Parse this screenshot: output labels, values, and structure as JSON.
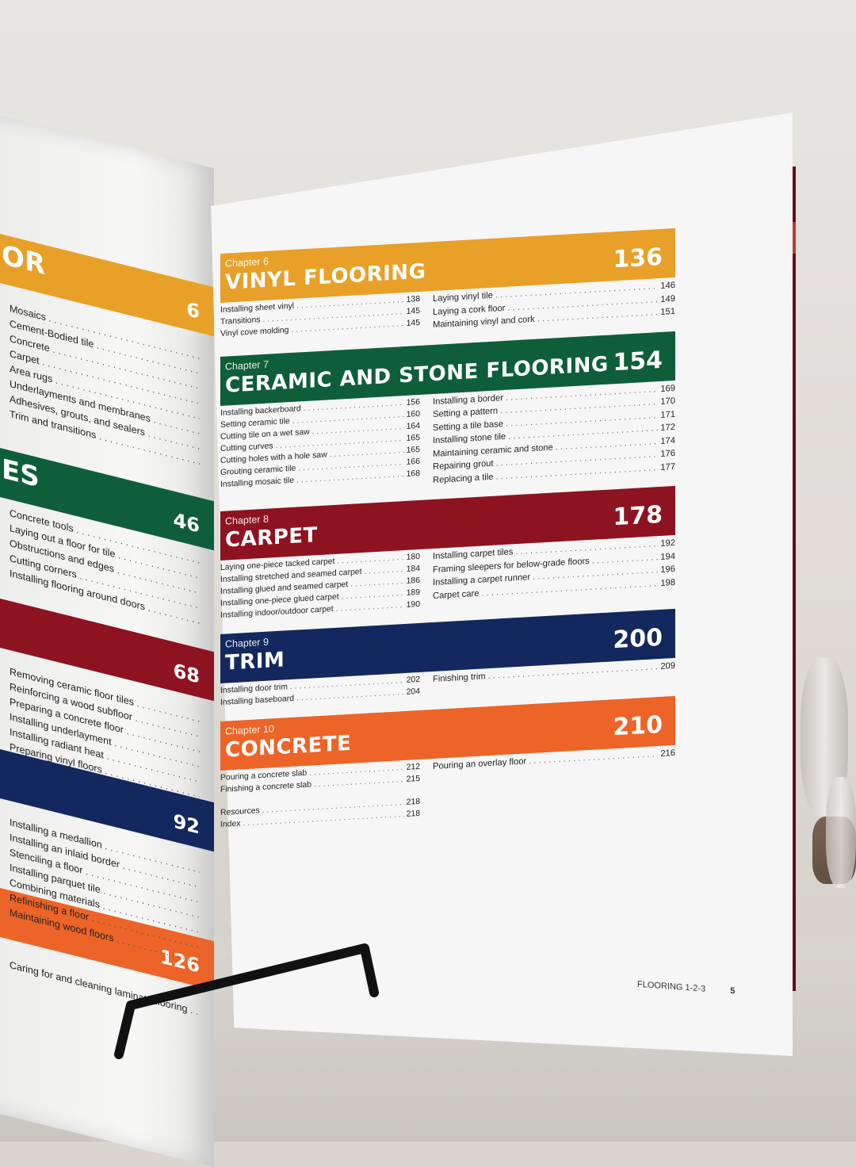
{
  "colors": {
    "orange_yellow": "#e8a029",
    "green": "#0f5e3a",
    "dark_red": "#8e1320",
    "navy": "#13285e",
    "orange": "#ec6427"
  },
  "left_page": {
    "bands": [
      {
        "fragment": "OR",
        "page": "6",
        "color": "#e8a029"
      },
      {
        "fragment": "ES",
        "page": "46",
        "color": "#0f5e3a"
      },
      {
        "fragment": "",
        "page": "68",
        "color": "#8e1320"
      },
      {
        "fragment": "",
        "page": "92",
        "color": "#13285e"
      },
      {
        "fragment": "",
        "page": "126",
        "color": "#ec6427"
      }
    ],
    "lists": [
      [
        "Mosaics",
        "Cement-Bodied tile",
        "Concrete",
        "Carpet",
        "Area rugs",
        "Underlayments and membranes",
        "Adhesives, grouts, and sealers",
        "Trim and transitions"
      ],
      [
        "Concrete tools",
        "Laying out a floor for tile",
        "Obstructions and edges",
        "Cutting corners",
        "Installing flooring around doors"
      ],
      [
        "Removing ceramic floor tiles",
        "Reinforcing a wood subfloor",
        "Preparing a concrete floor",
        "Installing underlayment",
        "Installing radiant heat",
        "Preparing vinyl floors"
      ],
      [
        "Installing a medallion",
        "Installing an inlaid border",
        "Stenciling a floor",
        "Installing parquet tile",
        "Combining materials",
        "Refinishing a floor",
        "Maintaining wood floors"
      ],
      [
        "Caring for and cleaning laminate flooring"
      ]
    ]
  },
  "chapters": [
    {
      "label": "Chapter 6",
      "title": "VINYL FLOORING",
      "page": "136",
      "color": "#e8a029",
      "left": [
        {
          "t": "Installing sheet vinyl",
          "p": "138"
        },
        {
          "t": "Transitions",
          "p": "145"
        },
        {
          "t": "Vinyl cove molding",
          "p": "145"
        }
      ],
      "right": [
        {
          "t": "Laying vinyl tile",
          "p": "146"
        },
        {
          "t": "Laying a cork floor",
          "p": "149"
        },
        {
          "t": "Maintaining vinyl and cork",
          "p": "151"
        }
      ]
    },
    {
      "label": "Chapter 7",
      "title": "CERAMIC AND STONE FLOORING",
      "page": "154",
      "color": "#0f5e3a",
      "left": [
        {
          "t": "Installing backerboard",
          "p": "156"
        },
        {
          "t": "Setting ceramic tile",
          "p": "160"
        },
        {
          "t": "Cutting tile on a wet saw",
          "p": "164"
        },
        {
          "t": "Cutting curves",
          "p": "165"
        },
        {
          "t": "Cutting holes with a hole saw",
          "p": "165"
        },
        {
          "t": "Grouting ceramic tile",
          "p": "166"
        },
        {
          "t": "Installing mosaic tile",
          "p": "168"
        }
      ],
      "right": [
        {
          "t": "Installing a border",
          "p": "169"
        },
        {
          "t": "Setting a pattern",
          "p": "170"
        },
        {
          "t": "Setting a tile base",
          "p": "171"
        },
        {
          "t": "Installing stone tile",
          "p": "172"
        },
        {
          "t": "Maintaining ceramic and stone",
          "p": "174"
        },
        {
          "t": "Repairing grout",
          "p": "176"
        },
        {
          "t": "Replacing a tile",
          "p": "177"
        }
      ]
    },
    {
      "label": "Chapter 8",
      "title": "CARPET",
      "page": "178",
      "color": "#8e1320",
      "left": [
        {
          "t": "Laying one-piece tacked carpet",
          "p": "180"
        },
        {
          "t": "Installing stretched and seamed carpet",
          "p": "184"
        },
        {
          "t": "Installing glued and seamed carpet",
          "p": "186"
        },
        {
          "t": "Installing one-piece glued carpet",
          "p": "189"
        },
        {
          "t": "Installing indoor/outdoor carpet",
          "p": "190"
        }
      ],
      "right": [
        {
          "t": "Installing carpet tiles",
          "p": "192"
        },
        {
          "t": "Framing sleepers for below-grade floors",
          "p": "194"
        },
        {
          "t": "Installing a carpet runner",
          "p": "196"
        },
        {
          "t": "Carpet care",
          "p": "198"
        }
      ]
    },
    {
      "label": "Chapter 9",
      "title": "TRIM",
      "page": "200",
      "color": "#13285e",
      "left": [
        {
          "t": "Installing door trim",
          "p": "202"
        },
        {
          "t": "Installing baseboard",
          "p": "204"
        }
      ],
      "right": [
        {
          "t": "Finishing trim",
          "p": "209"
        }
      ]
    },
    {
      "label": "Chapter 10",
      "title": "CONCRETE",
      "page": "210",
      "color": "#ec6427",
      "left": [
        {
          "t": "Pouring a concrete slab",
          "p": "212"
        },
        {
          "t": "Finishing a concrete slab",
          "p": "215"
        }
      ],
      "right": [
        {
          "t": "Pouring an overlay floor",
          "p": "216"
        }
      ]
    }
  ],
  "backmatter": [
    {
      "t": "Resources",
      "p": "218"
    },
    {
      "t": "Index",
      "p": "218"
    }
  ],
  "footer": {
    "book_title": "FLOORING 1-2-3",
    "page_number": "5"
  }
}
